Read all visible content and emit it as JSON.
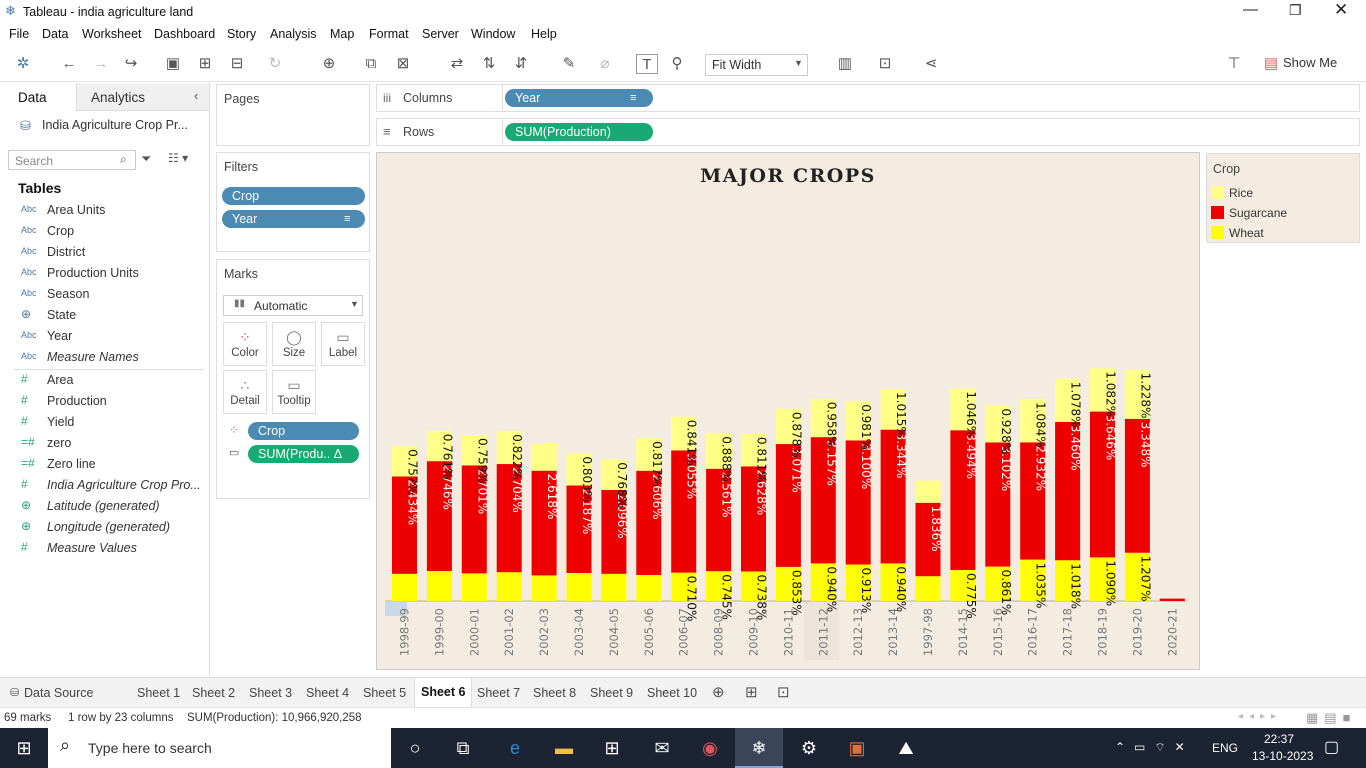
{
  "window": {
    "title": "Tableau - india agriculture land"
  },
  "menu": [
    "File",
    "Data",
    "Worksheet",
    "Dashboard",
    "Story",
    "Analysis",
    "Map",
    "Format",
    "Server",
    "Window",
    "Help"
  ],
  "toolbar": {
    "fit_label": "Fit Width",
    "show_me": "Show Me"
  },
  "side": {
    "tab_data": "Data",
    "tab_analytics": "Analytics",
    "datasource": "India Agriculture Crop Pr...",
    "search_placeholder": "Search",
    "tables_heading": "Tables",
    "dimensions": [
      {
        "icon": "Abc",
        "name": "Area Units"
      },
      {
        "icon": "Abc",
        "name": "Crop"
      },
      {
        "icon": "Abc",
        "name": "District"
      },
      {
        "icon": "Abc",
        "name": "Production Units"
      },
      {
        "icon": "Abc",
        "name": "Season"
      },
      {
        "icon": "⊕",
        "name": "State"
      },
      {
        "icon": "Abc",
        "name": "Year"
      },
      {
        "icon": "Abc",
        "name": "Measure Names"
      }
    ],
    "measures": [
      {
        "icon": "#",
        "name": "Area"
      },
      {
        "icon": "#",
        "name": "Production"
      },
      {
        "icon": "#",
        "name": "Yield"
      },
      {
        "icon": "=#",
        "name": "zero"
      },
      {
        "icon": "=#",
        "name": "Zero line"
      },
      {
        "icon": "#",
        "name": "India Agriculture Crop Pro..."
      },
      {
        "icon": "⊕",
        "name": "Latitude (generated)"
      },
      {
        "icon": "⊕",
        "name": "Longitude (generated)"
      },
      {
        "icon": "#",
        "name": "Measure Values"
      }
    ]
  },
  "cards": {
    "pages": "Pages",
    "filters": "Filters",
    "marks": "Marks",
    "filter_pills": [
      "Crop",
      "Year"
    ],
    "mark_type": "Automatic",
    "mark_buttons": [
      "Color",
      "Size",
      "Label",
      "Detail",
      "Tooltip"
    ],
    "mark_pills": [
      "Crop",
      "SUM(Produ.. Δ"
    ]
  },
  "shelves": {
    "columns_label": "Columns",
    "columns_pill": "Year",
    "rows_label": "Rows",
    "rows_pill": "SUM(Production)"
  },
  "legend": {
    "title": "Crop",
    "items": [
      {
        "name": "Rice",
        "color": "#ffff88"
      },
      {
        "name": "Sugarcane",
        "color": "#ee0000"
      },
      {
        "name": "Wheat",
        "color": "#ffff00"
      }
    ]
  },
  "chart_data": {
    "type": "bar",
    "stacked": true,
    "title": "MAJOR CROPS",
    "categories": [
      "1998-99",
      "1999-00",
      "2000-01",
      "2001-02",
      "2002-03",
      "2003-04",
      "2004-05",
      "2005-06",
      "2006-07",
      "2008-09",
      "2009-10",
      "2010-11",
      "2011-12",
      "2012-13",
      "2013-14",
      "1997-98",
      "2014-15",
      "2015-16",
      "2016-17",
      "2017-18",
      "2018-19",
      "2019-20",
      "2020-21"
    ],
    "colors": {
      "Rice": "#ffff88",
      "Sugarcane": "#ee0000",
      "Wheat": "#ffff00"
    },
    "series": [
      {
        "name": "Wheat",
        "values": [
          0.68,
          0.75,
          0.69,
          0.72,
          0.64,
          0.7,
          0.68,
          0.65,
          0.71,
          0.745,
          0.738,
          0.853,
          0.94,
          0.913,
          0.94,
          0.62,
          0.775,
          0.861,
          1.035,
          1.018,
          1.09,
          1.207,
          0
        ],
        "labels": [
          "",
          "",
          "",
          "",
          "",
          "",
          "",
          "",
          "0.710%",
          "0.745%",
          "0.738%",
          "0.853%",
          "0.940%",
          "0.913%",
          "0.940%",
          "",
          "0.775%",
          "0.861%",
          "1.035%",
          "1.018%",
          "1.090%",
          "1.207%",
          ""
        ]
      },
      {
        "name": "Sugarcane",
        "values": [
          2.434,
          2.746,
          2.701,
          2.704,
          2.618,
          2.187,
          2.096,
          2.606,
          3.055,
          2.561,
          2.628,
          3.071,
          3.157,
          3.1,
          3.344,
          1.836,
          3.494,
          3.102,
          2.932,
          3.46,
          3.646,
          3.348,
          0.06
        ],
        "labels": [
          "2.434%",
          "2.746%",
          "2.701%",
          "2.704%",
          "2.618%",
          "2.187%",
          "2.096%",
          "2.606%",
          "3.055%",
          "2.561%",
          "2.628%",
          "3.071%",
          "3.157%",
          "3.100%",
          "3.344%",
          "1.836%",
          "3.494%",
          "3.102%",
          "2.932%",
          "3.460%",
          "3.646%",
          "3.348%",
          ""
        ]
      },
      {
        "name": "Rice",
        "values": [
          0.757,
          0.761,
          0.759,
          0.822,
          0.67,
          0.803,
          0.768,
          0.817,
          0.841,
          0.888,
          0.811,
          0.878,
          0.958,
          0.981,
          1.015,
          0.55,
          1.046,
          0.928,
          1.084,
          1.078,
          1.082,
          1.228,
          0
        ],
        "labels": [
          "0.757%",
          "0.761%",
          "0.759%",
          "0.822%",
          "",
          "0.803%",
          "0.768%",
          "0.817%",
          "0.841%",
          "0.888%",
          "0.811%",
          "0.878%",
          "0.958%",
          "0.981%",
          "1.015%",
          "",
          "1.046%",
          "0.928%",
          "1.084%",
          "1.078%",
          "1.082%",
          "1.228%",
          ""
        ]
      }
    ]
  },
  "sheets": [
    "Sheet 1",
    "Sheet 2",
    "Sheet 3",
    "Sheet 4",
    "Sheet 5",
    "Sheet 6",
    "Sheet 7",
    "Sheet 8",
    "Sheet 9",
    "Sheet 10"
  ],
  "active_sheet": "Sheet 6",
  "data_source_tab": "Data Source",
  "status": {
    "marks": "69 marks",
    "dims": "1 row by 23 columns",
    "sum": "SUM(Production): 10,966,920,258"
  },
  "taskbar": {
    "search_placeholder": "Type here to search",
    "time": "22:37",
    "date": "13-10-2023",
    "lang": "ENG"
  }
}
